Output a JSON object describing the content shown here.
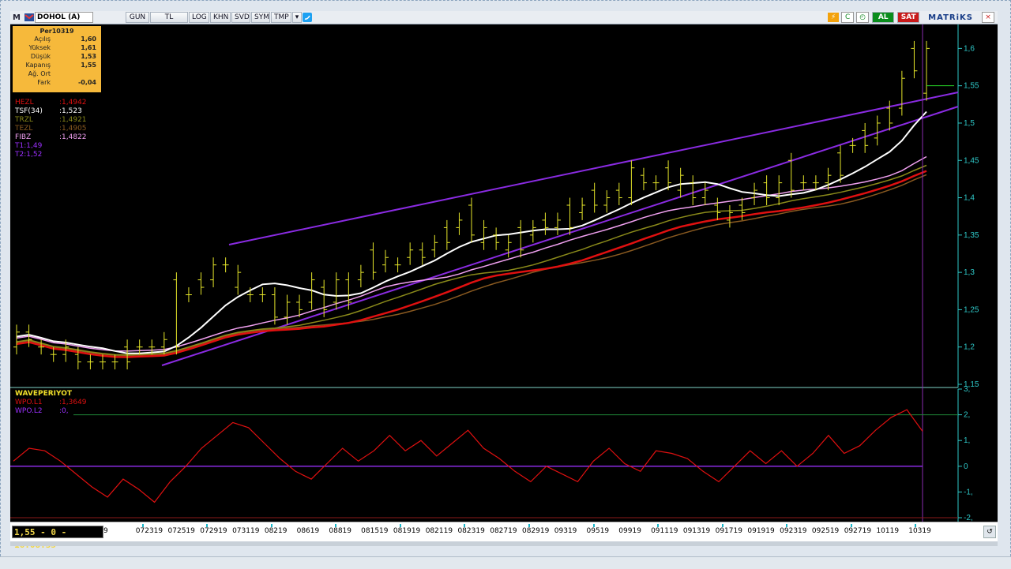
{
  "toolbar": {
    "logo": "M",
    "symbol": "DOHOL (A)",
    "buttons": [
      "GUN",
      "TL",
      "LOG",
      "KHN",
      "SVD",
      "SYM",
      "TMP"
    ],
    "buy_label": "AL",
    "sell_label": "SAT",
    "brand": "MATRiKS"
  },
  "info_box": {
    "title": "Per10319",
    "rows": [
      {
        "label": "Açılış",
        "value": "1,60"
      },
      {
        "label": "Yüksek",
        "value": "1,61"
      },
      {
        "label": "Düşük",
        "value": "1,53"
      },
      {
        "label": "Kapanış",
        "value": "1,55"
      },
      {
        "label": "Ağ. Ort",
        "value": ""
      },
      {
        "label": "Fark",
        "value": "-0,04"
      }
    ]
  },
  "legend_main": [
    {
      "name": "HEZL",
      "value": ":1,4942",
      "color": "#e01010"
    },
    {
      "name": "TSF(34)",
      "value": ":1,523",
      "color": "#ffffff"
    },
    {
      "name": "TRZL",
      "value": ":1,4921",
      "color": "#8a8a1a"
    },
    {
      "name": "TEZL",
      "value": ":1,4905",
      "color": "#8a5a20"
    },
    {
      "name": "FIBZ",
      "value": ":1,4822",
      "color": "#f0a0f0"
    },
    {
      "name": "T1:1,49",
      "value": "",
      "color": "#9b30ff"
    },
    {
      "name": "T2:1,52",
      "value": "",
      "color": "#9b30ff"
    }
  ],
  "legend_osc": {
    "title": "WAVEPERIYOT",
    "title_color": "#f1e02a",
    "lines": [
      {
        "name": "WPO.L1",
        "value": ":1,3649",
        "color": "#e01010"
      },
      {
        "name": "WPO.L2",
        "value": ":0,",
        "color": "#9b30ff"
      }
    ]
  },
  "price_axis": [
    "1,6",
    "1,55",
    "1,5",
    "1,45",
    "1,4",
    "1,35",
    "1,3",
    "1,25",
    "1,2",
    "1,15"
  ],
  "osc_axis": [
    "3,",
    "2,",
    "1,",
    "0",
    "-1,",
    "-2,"
  ],
  "status_text": "1,55 - 0 - 16:08:35",
  "dates": [
    "9",
    "072319",
    "072519",
    "072919",
    "073119",
    "08219",
    "08619",
    "08819",
    "081519",
    "081919",
    "082119",
    "082319",
    "082719",
    "082919",
    "09319",
    "09519",
    "09919",
    "091119",
    "091319",
    "091719",
    "091919",
    "092319",
    "092519",
    "092719",
    "10119",
    "10319"
  ],
  "chart_data": {
    "type": "line",
    "ylim": [
      1.15,
      1.63
    ],
    "bars": [
      {
        "h": 1.23,
        "l": 1.19
      },
      {
        "h": 1.23,
        "l": 1.2
      },
      {
        "h": 1.21,
        "l": 1.19
      },
      {
        "h": 1.2,
        "l": 1.18
      },
      {
        "h": 1.21,
        "l": 1.18
      },
      {
        "h": 1.2,
        "l": 1.17
      },
      {
        "h": 1.19,
        "l": 1.17
      },
      {
        "h": 1.19,
        "l": 1.17
      },
      {
        "h": 1.19,
        "l": 1.17
      },
      {
        "h": 1.21,
        "l": 1.17
      },
      {
        "h": 1.21,
        "l": 1.19
      },
      {
        "h": 1.21,
        "l": 1.19
      },
      {
        "h": 1.22,
        "l": 1.19
      },
      {
        "h": 1.3,
        "l": 1.19
      },
      {
        "h": 1.28,
        "l": 1.26
      },
      {
        "h": 1.3,
        "l": 1.27
      },
      {
        "h": 1.32,
        "l": 1.28
      },
      {
        "h": 1.32,
        "l": 1.3
      },
      {
        "h": 1.31,
        "l": 1.27
      },
      {
        "h": 1.28,
        "l": 1.26
      },
      {
        "h": 1.28,
        "l": 1.26
      },
      {
        "h": 1.28,
        "l": 1.23
      },
      {
        "h": 1.27,
        "l": 1.23
      },
      {
        "h": 1.27,
        "l": 1.24
      },
      {
        "h": 1.3,
        "l": 1.25
      },
      {
        "h": 1.29,
        "l": 1.24
      },
      {
        "h": 1.3,
        "l": 1.25
      },
      {
        "h": 1.3,
        "l": 1.25
      },
      {
        "h": 1.31,
        "l": 1.28
      },
      {
        "h": 1.34,
        "l": 1.29
      },
      {
        "h": 1.33,
        "l": 1.3
      },
      {
        "h": 1.32,
        "l": 1.3
      },
      {
        "h": 1.34,
        "l": 1.31
      },
      {
        "h": 1.34,
        "l": 1.31
      },
      {
        "h": 1.35,
        "l": 1.32
      },
      {
        "h": 1.37,
        "l": 1.33
      },
      {
        "h": 1.38,
        "l": 1.35
      },
      {
        "h": 1.4,
        "l": 1.34
      },
      {
        "h": 1.37,
        "l": 1.33
      },
      {
        "h": 1.36,
        "l": 1.33
      },
      {
        "h": 1.35,
        "l": 1.32
      },
      {
        "h": 1.37,
        "l": 1.32
      },
      {
        "h": 1.37,
        "l": 1.34
      },
      {
        "h": 1.38,
        "l": 1.35
      },
      {
        "h": 1.38,
        "l": 1.35
      },
      {
        "h": 1.4,
        "l": 1.35
      },
      {
        "h": 1.4,
        "l": 1.37
      },
      {
        "h": 1.42,
        "l": 1.38
      },
      {
        "h": 1.41,
        "l": 1.38
      },
      {
        "h": 1.42,
        "l": 1.39
      },
      {
        "h": 1.45,
        "l": 1.39
      },
      {
        "h": 1.44,
        "l": 1.41
      },
      {
        "h": 1.43,
        "l": 1.41
      },
      {
        "h": 1.45,
        "l": 1.41
      },
      {
        "h": 1.44,
        "l": 1.4
      },
      {
        "h": 1.43,
        "l": 1.39
      },
      {
        "h": 1.42,
        "l": 1.39
      },
      {
        "h": 1.4,
        "l": 1.37
      },
      {
        "h": 1.39,
        "l": 1.36
      },
      {
        "h": 1.4,
        "l": 1.37
      },
      {
        "h": 1.42,
        "l": 1.39
      },
      {
        "h": 1.43,
        "l": 1.39
      },
      {
        "h": 1.43,
        "l": 1.39
      },
      {
        "h": 1.46,
        "l": 1.4
      },
      {
        "h": 1.43,
        "l": 1.41
      },
      {
        "h": 1.43,
        "l": 1.41
      },
      {
        "h": 1.44,
        "l": 1.41
      },
      {
        "h": 1.47,
        "l": 1.42
      },
      {
        "h": 1.48,
        "l": 1.46
      },
      {
        "h": 1.5,
        "l": 1.46
      },
      {
        "h": 1.51,
        "l": 1.47
      },
      {
        "h": 1.53,
        "l": 1.49
      },
      {
        "h": 1.57,
        "l": 1.51
      },
      {
        "h": 1.61,
        "l": 1.56
      },
      {
        "h": 1.61,
        "l": 1.53
      }
    ],
    "oscillator": [
      0.2,
      0.7,
      0.6,
      0.2,
      -0.3,
      -0.8,
      -1.2,
      -0.5,
      -0.9,
      -1.4,
      -0.6,
      0,
      0.7,
      1.2,
      1.7,
      1.5,
      0.9,
      0.3,
      -0.2,
      -0.5,
      0.1,
      0.7,
      0.2,
      0.6,
      1.2,
      0.6,
      1.0,
      0.4,
      0.9,
      1.4,
      0.7,
      0.3,
      -0.2,
      -0.6,
      0,
      -0.3,
      -0.6,
      0.2,
      0.7,
      0.1,
      -0.2,
      0.6,
      0.5,
      0.3,
      -0.2,
      -0.6,
      0,
      0.6,
      0.1,
      0.6,
      0,
      0.5,
      1.2,
      0.5,
      0.8,
      1.4,
      1.9,
      2.2,
      1.36
    ],
    "wpo_l2": 0,
    "osc_ylim": [
      -2,
      3
    ]
  }
}
